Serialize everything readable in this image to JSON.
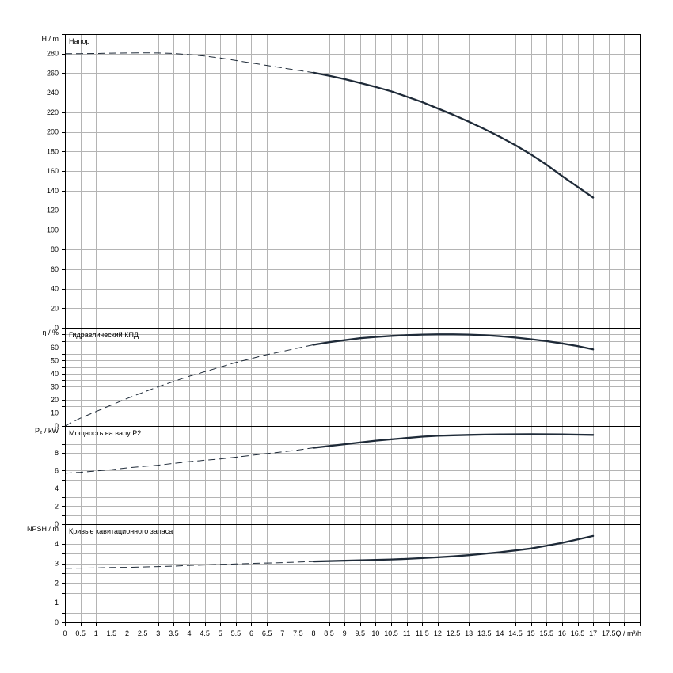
{
  "chart_data": {
    "type": "line",
    "x_axis": {
      "label": "Q / m³/h",
      "min": 0,
      "max": 18.5,
      "tick_labels": [
        "0",
        "0.5",
        "1",
        "1.5",
        "2",
        "2.5",
        "3",
        "3.5",
        "4",
        "4.5",
        "5",
        "5.5",
        "6",
        "6.5",
        "7",
        "7.5",
        "8",
        "8.5",
        "9",
        "9.5",
        "10",
        "10.5",
        "11",
        "11.5",
        "12",
        "12.5",
        "13",
        "13.5",
        "14",
        "14.5",
        "15",
        "15.5",
        "16",
        "16.5",
        "17",
        "17.5"
      ]
    },
    "operating_range": {
      "solid_from": 8,
      "solid_to": 17
    },
    "panels": [
      {
        "id": "head",
        "axis_label": "H / m",
        "title": "Напор",
        "ylim": [
          0,
          300
        ],
        "y_tick_step": 20,
        "y_tick_labels": [
          "0",
          "20",
          "40",
          "60",
          "80",
          "100",
          "120",
          "140",
          "160",
          "180",
          "200",
          "220",
          "240",
          "260",
          "280"
        ],
        "x": [
          0,
          0.5,
          1,
          1.5,
          2,
          2.5,
          3,
          3.5,
          4,
          4.5,
          5,
          5.5,
          6,
          6.5,
          7,
          7.5,
          8,
          8.5,
          9,
          9.5,
          10,
          10.5,
          11,
          11.5,
          12,
          12.5,
          13,
          13.5,
          14,
          14.5,
          15,
          15.5,
          16,
          16.5,
          17
        ],
        "y": [
          280,
          280,
          280.2,
          280.5,
          280.7,
          280.8,
          280.7,
          280.2,
          279,
          277.5,
          275.5,
          273,
          270.5,
          268,
          265.5,
          263,
          260.5,
          257.5,
          254,
          250,
          246,
          241.5,
          236,
          230.5,
          224,
          217.5,
          210.5,
          203,
          195,
          186.5,
          177,
          166.5,
          155,
          144,
          133
        ]
      },
      {
        "id": "efficiency",
        "axis_label": "η / %",
        "title": "Гидравлический КПД",
        "ylim": [
          0,
          75
        ],
        "y_tick_step": 5,
        "y_tick_labels": [
          "0",
          "10",
          "20",
          "30",
          "40",
          "50",
          "60"
        ],
        "x": [
          0,
          0.5,
          1,
          1.5,
          2,
          2.5,
          3,
          3.5,
          4,
          4.5,
          5,
          5.5,
          6,
          6.5,
          7,
          7.5,
          8,
          8.5,
          9,
          9.5,
          10,
          10.5,
          11,
          11.5,
          12,
          12.5,
          13,
          13.5,
          14,
          14.5,
          15,
          15.5,
          16,
          16.5,
          17
        ],
        "y": [
          0,
          6,
          11,
          16,
          21,
          25.5,
          30,
          34,
          38,
          41.5,
          45,
          48.5,
          51.5,
          54.5,
          57,
          59.5,
          62,
          64,
          65.5,
          67,
          68,
          68.8,
          69.4,
          69.8,
          70,
          70,
          69.8,
          69.3,
          68.5,
          67.5,
          66.2,
          64.8,
          63,
          61,
          58.5
        ]
      },
      {
        "id": "power",
        "axis_label": "P₂ / kW",
        "title": "Мощность на валу P2",
        "ylim": [
          0,
          11
        ],
        "y_tick_step": 1,
        "y_tick_labels": [
          "0",
          "2",
          "4",
          "6",
          "8"
        ],
        "x": [
          0,
          0.5,
          1,
          1.5,
          2,
          2.5,
          3,
          3.5,
          4,
          4.5,
          5,
          5.5,
          6,
          6.5,
          7,
          7.5,
          8,
          8.5,
          9,
          9.5,
          10,
          10.5,
          11,
          11.5,
          12,
          12.5,
          13,
          13.5,
          14,
          14.5,
          15,
          15.5,
          16,
          16.5,
          17
        ],
        "y": [
          5.7,
          5.8,
          5.95,
          6.1,
          6.3,
          6.45,
          6.6,
          6.8,
          7,
          7.15,
          7.3,
          7.5,
          7.7,
          7.9,
          8.1,
          8.3,
          8.55,
          8.75,
          8.95,
          9.15,
          9.35,
          9.5,
          9.65,
          9.8,
          9.9,
          9.95,
          10,
          10.03,
          10.05,
          10.07,
          10.08,
          10.07,
          10.05,
          10.02,
          10
        ]
      },
      {
        "id": "npsh",
        "axis_label": "NPSH / m",
        "title": "Кривые кавитационного запаса",
        "ylim": [
          0,
          5
        ],
        "y_tick_step": 0.5,
        "y_tick_labels": [
          "0",
          "1",
          "2",
          "3",
          "4"
        ],
        "x": [
          0,
          0.5,
          1,
          1.5,
          2,
          2.5,
          3,
          3.5,
          4,
          4.5,
          5,
          5.5,
          6,
          6.5,
          7,
          7.5,
          8,
          8.5,
          9,
          9.5,
          10,
          10.5,
          11,
          11.5,
          12,
          12.5,
          13,
          13.5,
          14,
          14.5,
          15,
          15.5,
          16,
          16.5,
          17
        ],
        "y": [
          2.75,
          2.76,
          2.77,
          2.79,
          2.8,
          2.82,
          2.84,
          2.86,
          2.9,
          2.92,
          2.95,
          2.97,
          3,
          3.02,
          3.04,
          3.07,
          3.1,
          3.12,
          3.14,
          3.16,
          3.18,
          3.2,
          3.23,
          3.27,
          3.31,
          3.36,
          3.42,
          3.49,
          3.57,
          3.66,
          3.76,
          3.9,
          4.05,
          4.22,
          4.4
        ]
      }
    ]
  }
}
